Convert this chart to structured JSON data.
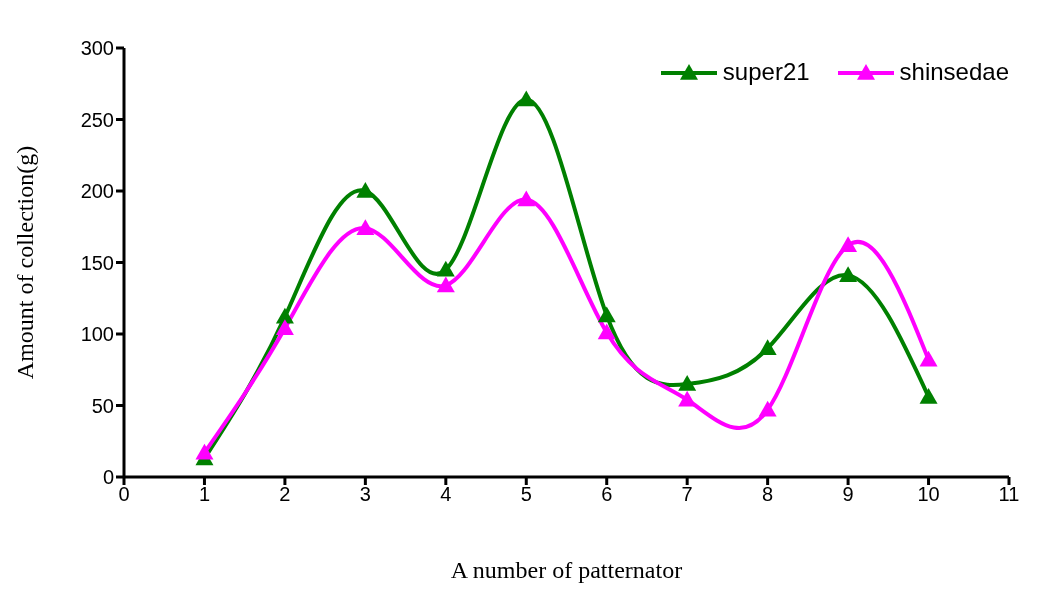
{
  "chart_data": {
    "type": "line",
    "xlabel": "A number of patternator",
    "ylabel": "Amount of collection(g)",
    "x": [
      1,
      2,
      3,
      4,
      5,
      6,
      7,
      8,
      9,
      10
    ],
    "series": [
      {
        "name": "super21",
        "color": "#008000",
        "values": [
          13,
          112,
          200,
          145,
          264,
          113,
          65,
          90,
          141,
          56
        ]
      },
      {
        "name": "shinsedae",
        "color": "#ff00ff",
        "values": [
          17,
          104,
          174,
          134,
          194,
          101,
          54,
          47,
          162,
          82
        ]
      }
    ],
    "xlim": [
      0,
      11
    ],
    "xticks": [
      0,
      1,
      2,
      3,
      4,
      5,
      6,
      7,
      8,
      9,
      10,
      11
    ],
    "ylim": [
      0,
      300
    ],
    "yticks": [
      0,
      50,
      100,
      150,
      200,
      250,
      300
    ],
    "grid": false,
    "legend": "top right",
    "marker": "triangle",
    "line_style": "solid"
  }
}
